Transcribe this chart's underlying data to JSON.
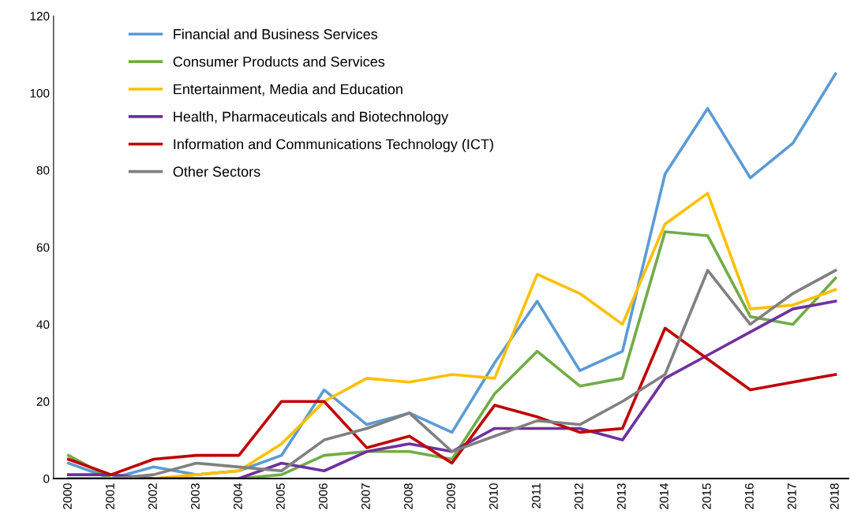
{
  "chart_data": {
    "type": "line",
    "categories": [
      "2000",
      "2001",
      "2002",
      "2003",
      "2004",
      "2005",
      "2006",
      "2007",
      "2008",
      "2009",
      "2010",
      "2011",
      "2012",
      "2013",
      "2014",
      "2015",
      "2016",
      "2017",
      "2018"
    ],
    "series": [
      {
        "name": "Financial and Business Services",
        "color": "#5b9bd5",
        "values": [
          4,
          0,
          3,
          1,
          2,
          6,
          23,
          14,
          17,
          12,
          30,
          46,
          28,
          33,
          79,
          96,
          78,
          87,
          105
        ]
      },
      {
        "name": "Consumer Products and Services",
        "color": "#70ad47",
        "values": [
          6,
          0,
          0,
          0,
          0,
          1,
          6,
          7,
          7,
          5,
          22,
          33,
          24,
          26,
          64,
          63,
          42,
          40,
          52
        ]
      },
      {
        "name": "Entertainment, Media and Education",
        "color": "#ffc000",
        "values": [
          0,
          0,
          0,
          1,
          2,
          9,
          20,
          26,
          25,
          27,
          26,
          53,
          48,
          40,
          66,
          74,
          44,
          45,
          49
        ]
      },
      {
        "name": "Health, Pharmaceuticals and Biotechnology",
        "color": "#7030a0",
        "values": [
          1,
          1,
          0,
          0,
          0,
          4,
          2,
          7,
          9,
          7,
          13,
          13,
          13,
          10,
          26,
          32,
          38,
          44,
          46
        ]
      },
      {
        "name": "Information and Communications Technology (ICT)",
        "color": "#c00000",
        "values": [
          5,
          1,
          5,
          6,
          6,
          20,
          20,
          8,
          11,
          4,
          19,
          16,
          12,
          13,
          39,
          31,
          23,
          25,
          27
        ]
      },
      {
        "name": "Other Sectors",
        "color": "#808080",
        "values": [
          0,
          0,
          1,
          4,
          3,
          2,
          10,
          13,
          17,
          7,
          11,
          15,
          14,
          20,
          27,
          54,
          40,
          48,
          54
        ]
      }
    ],
    "ylim": [
      0,
      120
    ],
    "yticks": [
      0,
      20,
      40,
      60,
      80,
      100,
      120
    ],
    "grid": false,
    "legend": "top left",
    "marker": "none",
    "line_style": "solid"
  }
}
